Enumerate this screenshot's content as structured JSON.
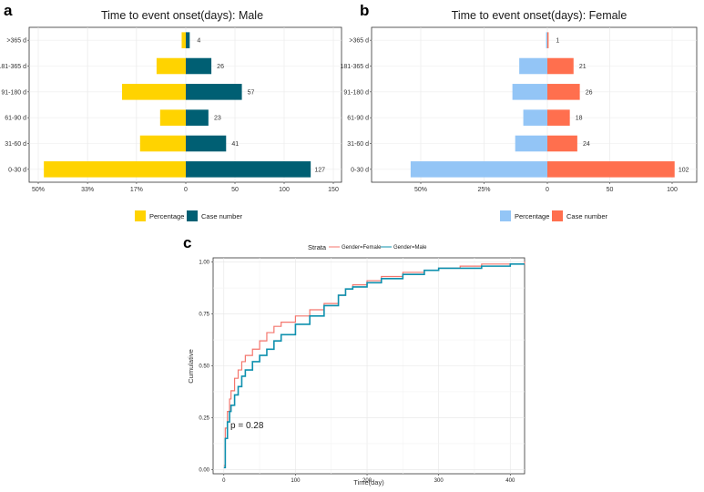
{
  "colors": {
    "male_pct": "#FFD300",
    "male_case": "#005F73",
    "female_pct": "#93C5F6",
    "female_case": "#FF6F4E",
    "km_female": "#F4766D",
    "km_male": "#0E90AE"
  },
  "panel_labels": {
    "a": "a",
    "b": "b",
    "c": "c"
  },
  "chart_data": [
    {
      "type": "bar",
      "panel": "a",
      "title": "Time to event onset(days): Male",
      "categories": [
        ">365 d",
        "181-365 d",
        "91-180 d",
        "61-90 d",
        "31-60 d",
        "0-30 d"
      ],
      "series": [
        {
          "name": "Percentage",
          "values": [
            1.4,
            9.9,
            21.6,
            8.7,
            15.5,
            48.1
          ]
        },
        {
          "name": "Case number",
          "values": [
            4,
            26,
            57,
            23,
            41,
            127
          ]
        }
      ],
      "left_ticks": [
        "50%",
        "33%",
        "17%",
        "0"
      ],
      "left_tick_values": [
        50,
        33.3,
        16.7,
        0
      ],
      "right_ticks": [
        "50",
        "100",
        "150"
      ],
      "right_tick_values": [
        50,
        100,
        150
      ],
      "legend": [
        "Percentage",
        "Case number"
      ],
      "legend_position": "bottom"
    },
    {
      "type": "bar",
      "panel": "b",
      "title": "Time to event onset(days): Female",
      "categories": [
        ">365 d",
        "181-365 d",
        "91-180 d",
        "61-90 d",
        "31-60 d",
        "0-30 d"
      ],
      "series": [
        {
          "name": "Percentage",
          "values": [
            0.5,
            11.1,
            13.8,
            9.5,
            12.7,
            54.0
          ]
        },
        {
          "name": "Case number",
          "values": [
            1,
            21,
            26,
            18,
            24,
            102
          ]
        }
      ],
      "left_ticks": [
        "50%",
        "25%",
        "0"
      ],
      "left_tick_values": [
        50,
        25,
        0
      ],
      "right_ticks": [
        "50",
        "100"
      ],
      "right_tick_values": [
        50,
        100
      ],
      "legend": [
        "Percentage",
        "Case number"
      ],
      "legend_position": "bottom"
    },
    {
      "type": "line",
      "panel": "c",
      "legend_title": "Strata",
      "legend": [
        "Gender=Female",
        "Gender=Male"
      ],
      "legend_position": "top",
      "xlabel": "Time(day)",
      "ylabel": "Cumulative",
      "xlim": [
        -15,
        420
      ],
      "ylim": [
        -0.02,
        1.02
      ],
      "xticks": [
        "0",
        "100",
        "200",
        "300",
        "400"
      ],
      "xtick_values": [
        0,
        100,
        200,
        300,
        400
      ],
      "yticks": [
        "0.00",
        "0.25",
        "0.50",
        "0.75",
        "1.00"
      ],
      "ytick_values": [
        0,
        0.25,
        0.5,
        0.75,
        1.0
      ],
      "annotation": "p = 0.28",
      "series": [
        {
          "name": "Gender=Female",
          "x": [
            0,
            2,
            5,
            8,
            10,
            15,
            20,
            25,
            30,
            40,
            50,
            60,
            70,
            80,
            100,
            120,
            140,
            160,
            170,
            180,
            200,
            220,
            250,
            280,
            300,
            330,
            360,
            380,
            400,
            420
          ],
          "y": [
            0.02,
            0.2,
            0.28,
            0.34,
            0.38,
            0.44,
            0.48,
            0.52,
            0.55,
            0.58,
            0.62,
            0.66,
            0.69,
            0.71,
            0.74,
            0.77,
            0.8,
            0.84,
            0.87,
            0.89,
            0.91,
            0.93,
            0.95,
            0.96,
            0.97,
            0.98,
            0.99,
            0.99,
            0.99,
            1.0
          ]
        },
        {
          "name": "Gender=Male",
          "x": [
            0,
            2,
            5,
            8,
            10,
            15,
            20,
            25,
            30,
            40,
            50,
            60,
            70,
            80,
            100,
            120,
            140,
            160,
            170,
            180,
            200,
            220,
            250,
            280,
            300,
            330,
            360,
            380,
            400,
            420
          ],
          "y": [
            0.01,
            0.15,
            0.23,
            0.28,
            0.31,
            0.36,
            0.4,
            0.45,
            0.48,
            0.52,
            0.55,
            0.58,
            0.62,
            0.65,
            0.7,
            0.74,
            0.79,
            0.84,
            0.87,
            0.88,
            0.9,
            0.92,
            0.94,
            0.96,
            0.97,
            0.97,
            0.98,
            0.98,
            0.99,
            0.99
          ]
        }
      ]
    }
  ]
}
